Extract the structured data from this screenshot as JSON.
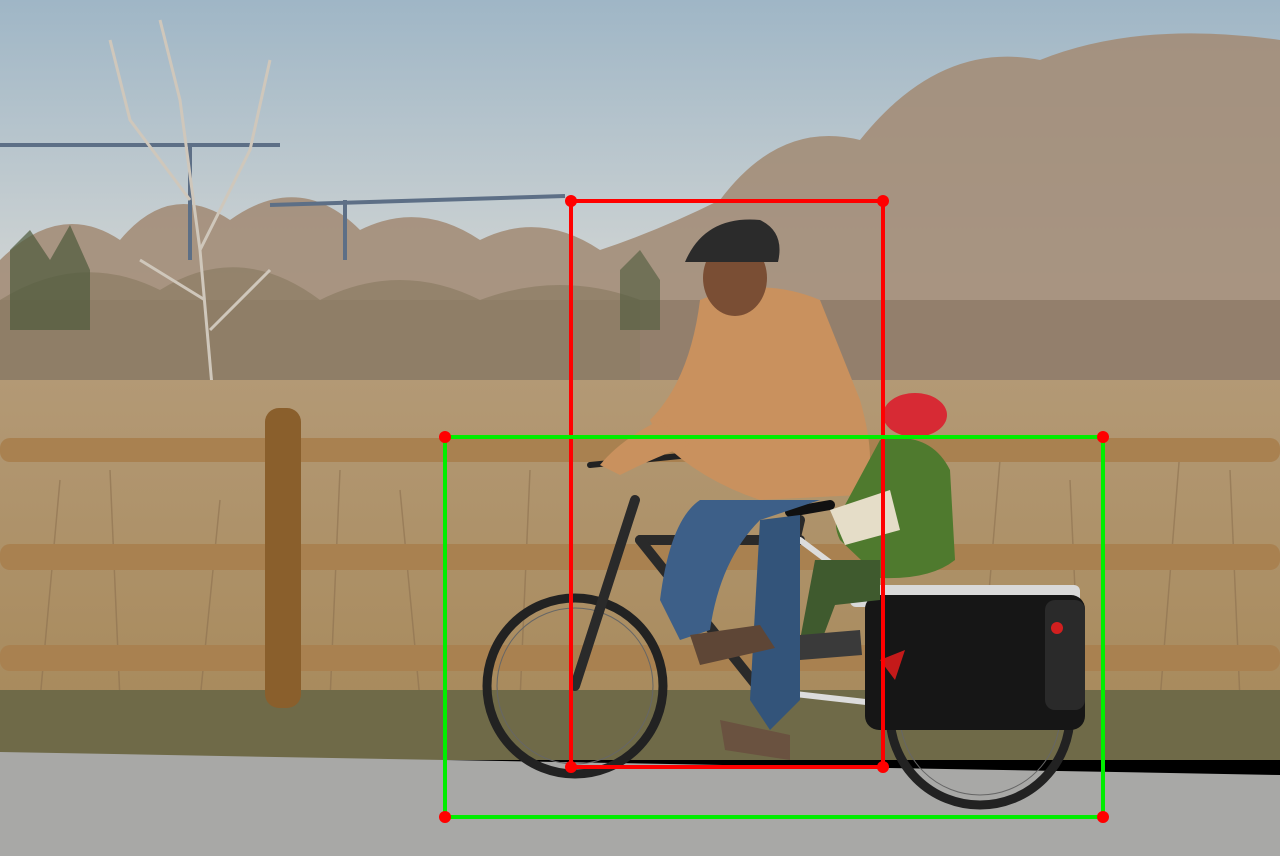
{
  "colors": {
    "sky_top": "#9fb6c6",
    "sky_bottom": "#d3d6d4",
    "brush": "#b89a6d",
    "brush_dark": "#8d7150",
    "trees": "#a08a74",
    "fence": "#a98150",
    "fence_post": "#8a5f2c",
    "path": "#a8a8a6",
    "ground": "#6f6a48",
    "person_box": "#ff0000",
    "bicycle_box": "#00ee00"
  }
}
